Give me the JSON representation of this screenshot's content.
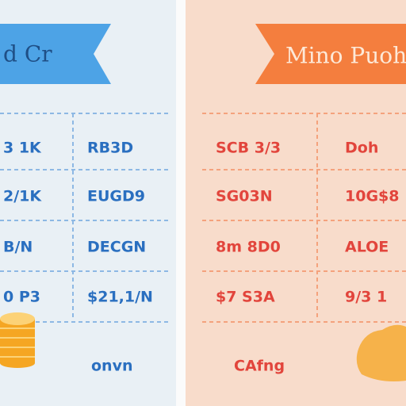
{
  "left": {
    "banner": "d Cr",
    "rows": [
      [
        "3 1K",
        "RB3D"
      ],
      [
        "2/1K",
        "EUGD9"
      ],
      [
        "B/N",
        "DECGN"
      ],
      [
        "0 P3",
        "$21,1/N"
      ]
    ],
    "footer": "onvn"
  },
  "right": {
    "banner": "Mino Puoh",
    "rows": [
      [
        "SCB 3/3",
        "Doh"
      ],
      [
        "SG03N",
        "10G$8"
      ],
      [
        "8m 8D0",
        "ALOE"
      ],
      [
        "$7 S3A",
        "9/3 1"
      ]
    ],
    "footer": "CAfng"
  }
}
